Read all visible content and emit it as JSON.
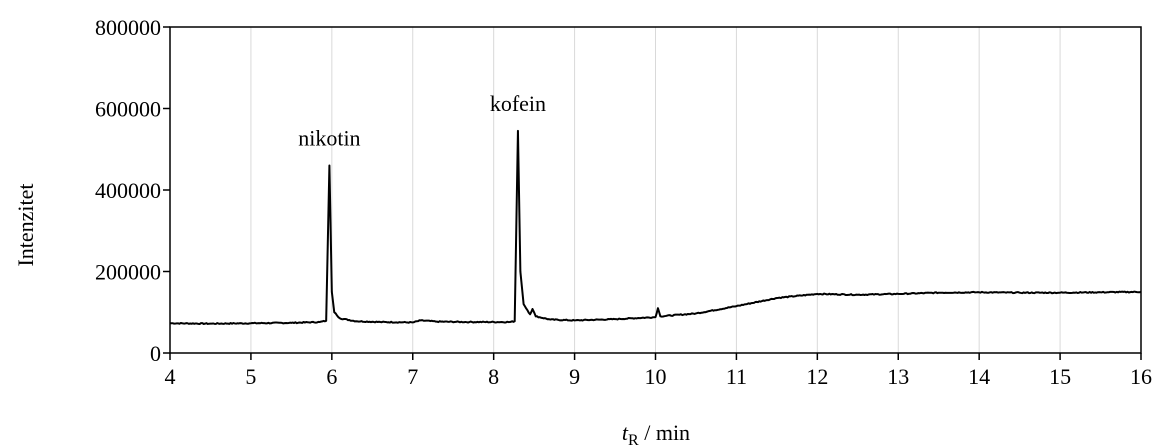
{
  "chart_data": {
    "type": "line",
    "title": "",
    "xlabel": "t_R / min",
    "xlabel_parts": {
      "var": "t",
      "sub": "R",
      "rest": " / min"
    },
    "ylabel": "Intenzitet",
    "xlim": [
      4,
      16
    ],
    "ylim": [
      0,
      800000
    ],
    "x_ticks": [
      4,
      5,
      6,
      7,
      8,
      9,
      10,
      11,
      12,
      13,
      14,
      15,
      16
    ],
    "y_ticks": [
      0,
      200000,
      400000,
      600000,
      800000
    ],
    "grid": "vertical",
    "series": [
      {
        "points": [
          [
            4.0,
            73000
          ],
          [
            4.5,
            72000
          ],
          [
            5.0,
            73000
          ],
          [
            5.5,
            74000
          ],
          [
            5.85,
            76000
          ],
          [
            5.93,
            79000
          ],
          [
            5.97,
            460000
          ],
          [
            6.0,
            150000
          ],
          [
            6.03,
            100000
          ],
          [
            6.1,
            85000
          ],
          [
            6.3,
            78000
          ],
          [
            6.6,
            76000
          ],
          [
            7.0,
            75000
          ],
          [
            7.1,
            80000
          ],
          [
            7.3,
            77000
          ],
          [
            7.7,
            76000
          ],
          [
            8.2,
            76000
          ],
          [
            8.26,
            78000
          ],
          [
            8.3,
            545000
          ],
          [
            8.33,
            200000
          ],
          [
            8.37,
            120000
          ],
          [
            8.45,
            95000
          ],
          [
            8.48,
            108000
          ],
          [
            8.52,
            90000
          ],
          [
            8.7,
            82000
          ],
          [
            9.0,
            80000
          ],
          [
            9.5,
            83000
          ],
          [
            10.0,
            88000
          ],
          [
            10.03,
            110000
          ],
          [
            10.06,
            90000
          ],
          [
            10.5,
            97000
          ],
          [
            11.0,
            115000
          ],
          [
            11.5,
            135000
          ],
          [
            12.0,
            145000
          ],
          [
            12.5,
            143000
          ],
          [
            13.0,
            145000
          ],
          [
            13.5,
            148000
          ],
          [
            14.0,
            149000
          ],
          [
            14.5,
            148000
          ],
          [
            15.0,
            148000
          ],
          [
            15.5,
            149000
          ],
          [
            16.0,
            150000
          ]
        ]
      }
    ],
    "annotations": [
      {
        "text": "nikotin",
        "x": 5.97,
        "y": 460000
      },
      {
        "text": "kofein",
        "x": 8.3,
        "y": 545000
      }
    ]
  }
}
